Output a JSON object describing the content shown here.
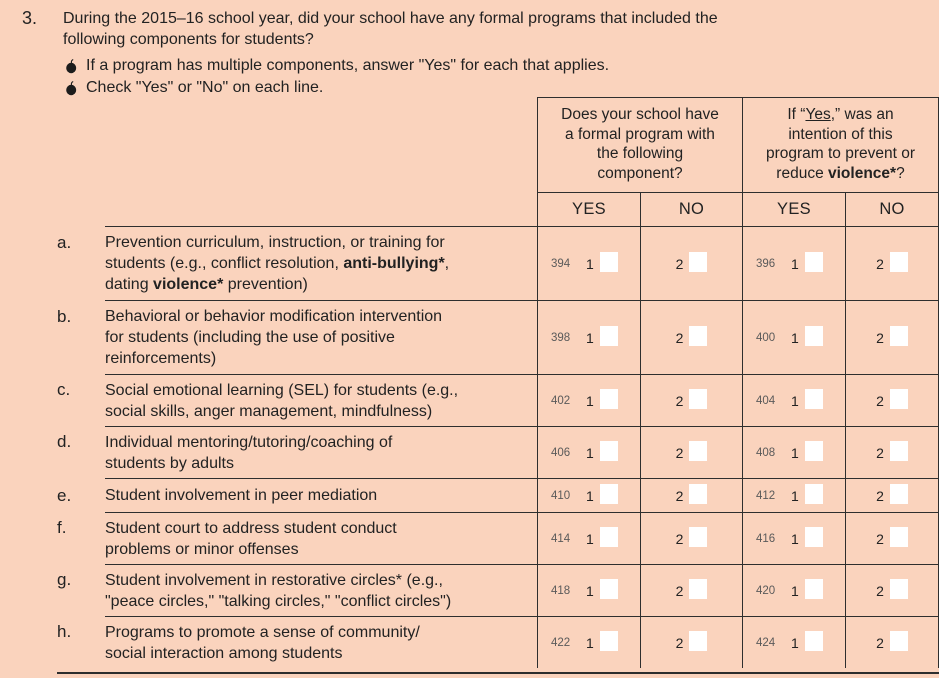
{
  "question": {
    "number": "3.",
    "text": "During the 2015–16 school year, did your school have any formal programs that included the\nfollowing components for students?",
    "instructions": [
      "If a program has multiple components, answer \"Yes\" for each that applies.",
      "Check \"Yes\" or \"No\" on each line."
    ],
    "bullet_icon": "apple-icon"
  },
  "colors": {
    "page_bg": "#fad3bd",
    "line": "#2e2e2e",
    "text": "#222222",
    "code_text": "#5a5a5a",
    "checkbox_bg": "#ffffff"
  },
  "table": {
    "group_headers": [
      {
        "name": "program-question",
        "segments": [
          {
            "t": "Does your school have\na formal program with\nthe following\ncomponent?"
          }
        ]
      },
      {
        "name": "violence-question",
        "segments": [
          {
            "t": "If “"
          },
          {
            "t": "Yes",
            "u": true
          },
          {
            "t": ",” was an\nintention of this\nprogram to prevent or\nreduce "
          },
          {
            "t": "violence*",
            "b": true
          },
          {
            "t": "?"
          }
        ]
      }
    ],
    "col_labels": [
      "YES",
      "NO",
      "YES",
      "NO"
    ],
    "option_digits": {
      "yes": "1",
      "no": "2"
    },
    "rows": [
      {
        "letter": "a.",
        "lines": [
          [
            {
              "t": "Prevention curriculum, instruction, or training for"
            }
          ],
          [
            {
              "t": "students (e.g., conflict resolution, "
            },
            {
              "t": "anti-bullying*",
              "b": true
            },
            {
              "t": ","
            }
          ],
          [
            {
              "t": "dating "
            },
            {
              "t": "violence*",
              "b": true
            },
            {
              "t": " prevention)"
            }
          ]
        ],
        "codes": [
          "394",
          "396"
        ]
      },
      {
        "letter": "b.",
        "lines": [
          [
            {
              "t": "Behavioral or behavior modification intervention"
            }
          ],
          [
            {
              "t": "for students (including the use of positive"
            }
          ],
          [
            {
              "t": "reinforcements)"
            }
          ]
        ],
        "codes": [
          "398",
          "400"
        ]
      },
      {
        "letter": "c.",
        "lines": [
          [
            {
              "t": "Social emotional learning (SEL) for students (e.g.,"
            }
          ],
          [
            {
              "t": "social skills, anger management, mindfulness)"
            }
          ]
        ],
        "codes": [
          "402",
          "404"
        ]
      },
      {
        "letter": "d.",
        "lines": [
          [
            {
              "t": "Individual mentoring/tutoring/coaching of"
            }
          ],
          [
            {
              "t": "students by adults"
            }
          ]
        ],
        "codes": [
          "406",
          "408"
        ]
      },
      {
        "letter": "e.",
        "lines": [
          [
            {
              "t": "Student involvement in peer mediation"
            }
          ]
        ],
        "codes": [
          "410",
          "412"
        ]
      },
      {
        "letter": "f.",
        "lines": [
          [
            {
              "t": "Student court to address student conduct"
            }
          ],
          [
            {
              "t": "problems or minor offenses"
            }
          ]
        ],
        "codes": [
          "414",
          "416"
        ]
      },
      {
        "letter": "g.",
        "lines": [
          [
            {
              "t": "Student involvement in restorative circles* (e.g.,"
            }
          ],
          [
            {
              "t": "\"peace circles,\" \"talking circles,\" \"conflict circles\")"
            }
          ]
        ],
        "codes": [
          "418",
          "420"
        ]
      },
      {
        "letter": "h.",
        "lines": [
          [
            {
              "t": "Programs to promote a sense of community/"
            }
          ],
          [
            {
              "t": "social interaction among students"
            }
          ]
        ],
        "codes": [
          "422",
          "424"
        ]
      }
    ]
  }
}
